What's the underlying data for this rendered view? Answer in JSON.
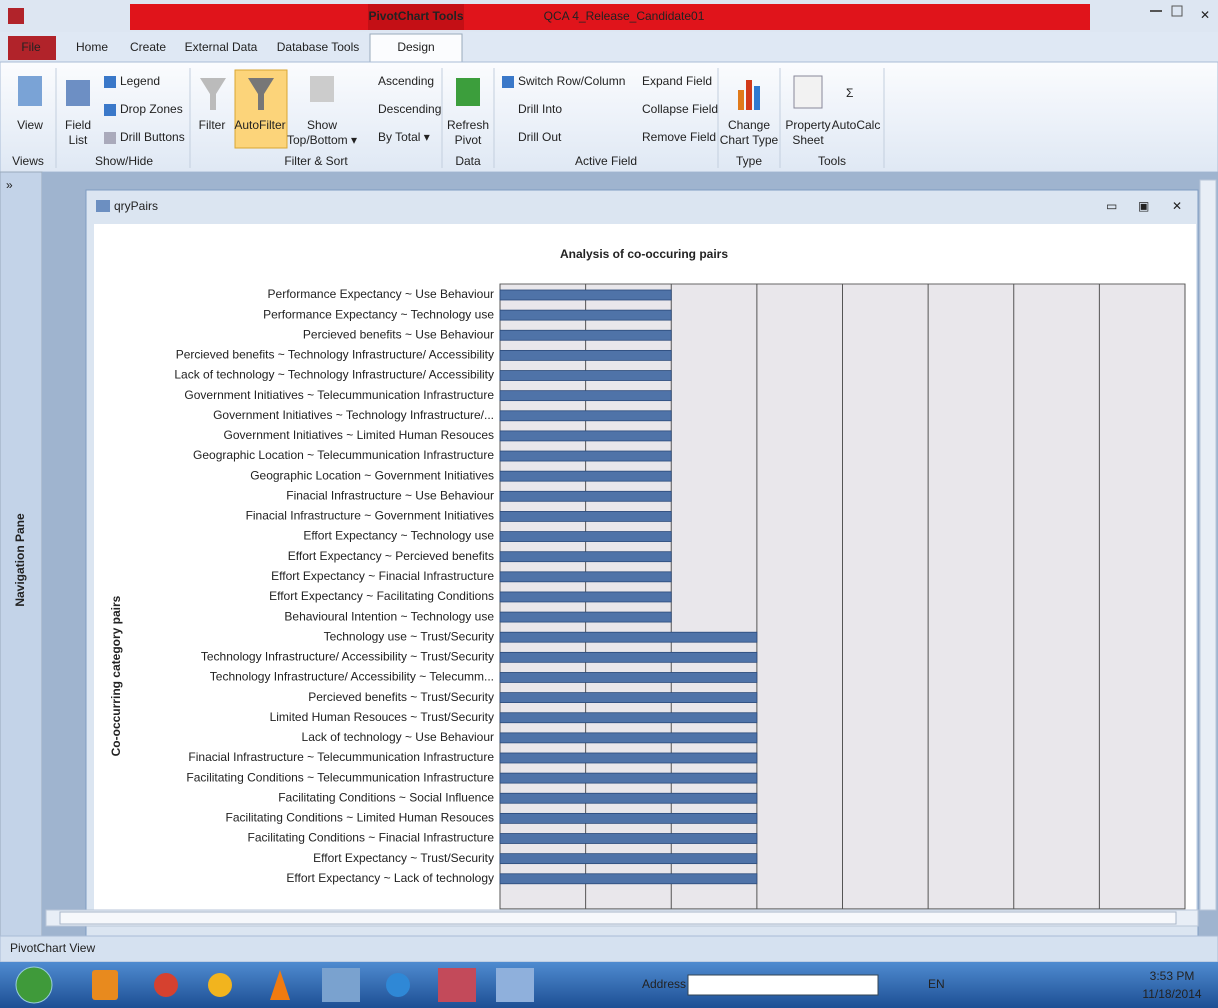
{
  "window": {
    "app_title": "QCA 4_Release_Candidate01",
    "context_tab": "PivotChart Tools"
  },
  "tabs": [
    "File",
    "Home",
    "Create",
    "External Data",
    "Database Tools",
    "Design"
  ],
  "ribbon": {
    "buttons": [
      "View",
      "Field",
      "List",
      "Legend",
      "Drop Zones",
      "Drill Buttons",
      "Filter",
      "AutoFilter",
      "Show",
      "Top/Bottom ▾",
      "Ascending",
      "Descending",
      "By Total ▾",
      "Refresh",
      "Pivot",
      "Switch Row/Column",
      "Drill Into",
      "Drill Out",
      "Expand Field",
      "Collapse Field",
      "Remove Field",
      "Change",
      "Chart Type",
      "Property",
      "Sheet",
      "AutoCalc"
    ],
    "groups": [
      "Views",
      "Show/Hide",
      "Filter & Sort",
      "Data",
      "Active Field",
      "Type",
      "Tools"
    ]
  },
  "navigation_pane": "Navigation Pane",
  "document_tab": "qryPairs",
  "chart_data": {
    "type": "bar",
    "orientation": "horizontal",
    "title": "Analysis of co-occuring pairs",
    "y_label": "Co-occurring category pairs",
    "categories": [
      "Performance Expectancy ~ Use Behaviour",
      "Performance Expectancy ~ Technology use",
      "Percieved benefits ~ Use Behaviour",
      "Percieved benefits ~ Technology Infrastructure/ Accessibility",
      "Lack of technology ~ Technology Infrastructure/ Accessibility",
      "Government Initiatives ~ Telecummunication Infrastructure",
      "Government Initiatives ~ Technology Infrastructure/...",
      "Government Initiatives ~ Limited Human Resouces",
      "Geographic Location ~ Telecummunication Infrastructure",
      "Geographic Location ~ Government Initiatives",
      "Finacial Infrastructure ~ Use Behaviour",
      "Finacial Infrastructure ~ Government Initiatives",
      "Effort Expectancy ~ Technology use",
      "Effort Expectancy ~ Percieved benefits",
      "Effort Expectancy ~ Finacial Infrastructure",
      "Effort Expectancy ~ Facilitating Conditions",
      "Behavioural Intention ~ Technology use",
      "Technology use ~ Trust/Security",
      "Technology Infrastructure/ Accessibility ~ Trust/Security",
      "Technology Infrastructure/ Accessibility ~ Telecumm...",
      "Percieved benefits ~ Trust/Security",
      "Limited Human Resouces ~ Trust/Security",
      "Lack of technology ~ Use Behaviour",
      "Finacial Infrastructure ~ Telecummunication Infrastructure",
      "Facilitating Conditions ~ Telecummunication Infrastructure",
      "Facilitating Conditions ~ Social Influence",
      "Facilitating Conditions ~ Limited Human Resouces",
      "Facilitating Conditions ~ Finacial Infrastructure",
      "Effort Expectancy ~ Trust/Security",
      "Effort Expectancy ~ Lack of technology"
    ],
    "values": [
      2,
      2,
      2,
      2,
      2,
      2,
      2,
      2,
      2,
      2,
      2,
      2,
      2,
      2,
      2,
      2,
      2,
      3,
      3,
      3,
      3,
      3,
      3,
      3,
      3,
      3,
      3,
      3,
      3,
      3
    ],
    "color": "#4f73a8",
    "xlim": [
      0,
      8
    ],
    "xticks": [
      0,
      1,
      2,
      3,
      4,
      5,
      6,
      7,
      8
    ],
    "grid": true
  },
  "status_bar": "PivotChart View",
  "taskbar": {
    "address": "Address",
    "language": "EN",
    "time": "3:53 PM",
    "date": "11/18/2014"
  }
}
